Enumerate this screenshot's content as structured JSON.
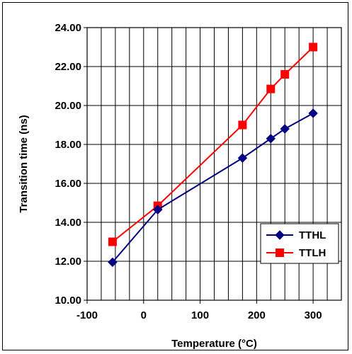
{
  "chart_data": {
    "type": "line",
    "title": "",
    "xlabel": "Temperature (°C)",
    "ylabel": "Transition time (ns)",
    "xlim": [
      -100,
      350
    ],
    "ylim": [
      10,
      24
    ],
    "x_ticks": [
      -100,
      0,
      100,
      200,
      300
    ],
    "x_tick_labels": [
      "-100",
      "0",
      "100",
      "200",
      "300"
    ],
    "y_ticks": [
      10,
      12,
      14,
      16,
      18,
      20,
      22,
      24
    ],
    "y_tick_labels": [
      "10.00",
      "12.00",
      "14.00",
      "16.00",
      "18.00",
      "20.00",
      "22.00",
      "24.00"
    ],
    "grid": "vertical every 25 °C; horizontal at y ticks",
    "legend": "lower-right",
    "series": [
      {
        "name": "TTHL",
        "color": "#000080",
        "marker": "diamond",
        "x": [
          -55,
          25,
          175,
          225,
          250,
          300
        ],
        "y": [
          11.95,
          14.65,
          17.3,
          18.3,
          18.8,
          19.6
        ]
      },
      {
        "name": "TTLH",
        "color": "#FF0000",
        "marker": "square",
        "x": [
          -55,
          25,
          175,
          225,
          250,
          300
        ],
        "y": [
          13.0,
          14.85,
          19.0,
          20.85,
          21.6,
          23.0
        ]
      }
    ]
  }
}
